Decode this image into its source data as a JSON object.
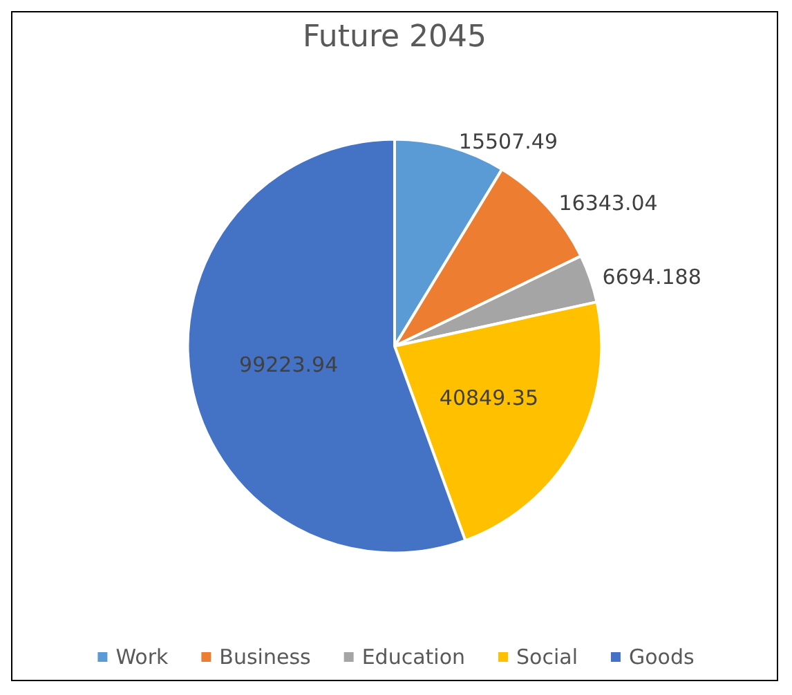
{
  "chart_data": {
    "type": "pie",
    "title": "Future 2045",
    "categories": [
      "Work",
      "Business",
      "Education",
      "Social",
      "Goods"
    ],
    "values": [
      15507.49,
      16343.04,
      6694.188,
      40849.35,
      99223.94
    ],
    "colors": [
      "#5b9bd5",
      "#ed7d31",
      "#a5a5a5",
      "#ffc000",
      "#4472c4"
    ],
    "data_labels": true,
    "legend": "bottom"
  }
}
